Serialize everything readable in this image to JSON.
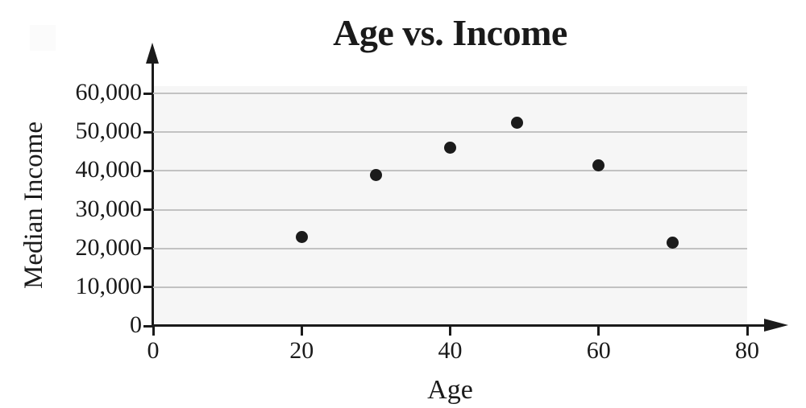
{
  "chart_data": {
    "type": "scatter",
    "title": "Age vs. Income",
    "xlabel": "Age",
    "ylabel": "Median Income",
    "points": [
      [
        20,
        23000
      ],
      [
        30,
        39000
      ],
      [
        40,
        46000
      ],
      [
        49,
        52500
      ],
      [
        60,
        41500
      ],
      [
        70,
        21500
      ]
    ],
    "x": [
      20,
      30,
      40,
      49,
      60,
      70
    ],
    "y": [
      23000,
      39000,
      46000,
      52500,
      41500,
      21500
    ],
    "xlim": [
      0,
      80
    ],
    "ylim": [
      0,
      60000
    ],
    "x_ticks": [
      0,
      20,
      40,
      60,
      80
    ],
    "x_tick_labels": [
      "0",
      "20",
      "40",
      "60",
      "80"
    ],
    "y_ticks": [
      0,
      10000,
      20000,
      30000,
      40000,
      50000,
      60000
    ],
    "y_tick_labels": [
      "0",
      "10,000",
      "20,000",
      "30,000",
      "40,000",
      "50,000",
      "60,000"
    ],
    "grid": "horizontal gridlines only",
    "legend": "none",
    "point_color": "#1b1b1b",
    "grid_color": "#c2c2c2",
    "plot_bg_color": "#f6f6f6",
    "axis_color": "#1a1a1a",
    "text_color": "#1a1a1a"
  }
}
